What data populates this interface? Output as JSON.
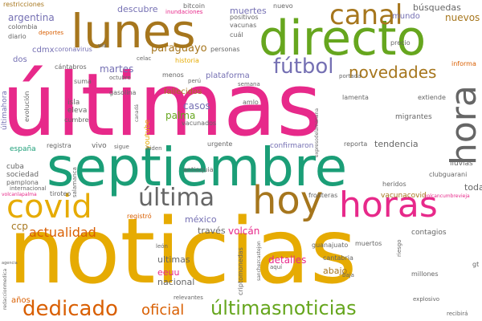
{
  "palette": {
    "pink": "#e7298a",
    "teal": "#1b9e77",
    "gold": "#e6ab02",
    "olive": "#a6761d",
    "green": "#66a61e",
    "purple": "#7570b3",
    "orange": "#d95f02",
    "grey": "#666666"
  },
  "words": {
    "noticias": "noticias",
    "ultimas_big": "últimas",
    "septiembre": "septiembre",
    "directo": "directo",
    "lunes": "lunes",
    "hoy": "hoy",
    "horas": "horas",
    "covid": "covid",
    "hora": "hora",
    "canal": "canal",
    "futbol": "fútbol",
    "ultima": "última",
    "novedades": "novedades",
    "ultimasnoticias": "últimasnoticias",
    "dedicado": "dedicado",
    "oficial": "oficial",
    "actualidad": "actualidad",
    "paraguayo": "paraguayo",
    "martes": "martes",
    "argentina": "argentina",
    "cdmx": "cdmx",
    "descubre": "descubre",
    "muertes": "muertes",
    "busquedas": "búsquedas",
    "nuevos": "nuevos",
    "mundo": "mundo",
    "tendencia": "tendencia",
    "detalles": "detalles",
    "abajo": "abajo",
    "toda": "toda",
    "volcan": "volcán",
    "ultimas_small": "ultimas",
    "eeuu": "eeuu",
    "nacional": "nacional",
    "casos": "casos",
    "palma": "palma",
    "mexico": "méxico",
    "traves": "través",
    "ccp": "ccp",
    "dos": "dos",
    "anos": "años",
    "vivo": "vivo",
    "youtube": "youtube",
    "fallecidos": "fallecidos",
    "plataforma": "plataforma",
    "cuba": "cuba",
    "sociedad": "sociedad",
    "pamplona": "pamplona",
    "espana": "españa",
    "informa": "informa",
    "confirmaron": "confirmaron",
    "contagios": "contagios",
    "vacunacovid": "vacunacovid",
    "lluvias": "lluvias",
    "migrantes": "migrantes",
    "guanajuato": "guanajuato",
    "muertos": "muertos",
    "millones": "millones",
    "amlo": "amlo",
    "cantabria": "cantabria",
    "historia": "historia",
    "coronavirus": "coronavirus",
    "vacunados": "vacunados",
    "cantabros": "cántabros",
    "isla": "isla",
    "eleva": "eleva",
    "suma": "suma",
    "evolucion": "evolución",
    "ultimahora": "últimahora",
    "menos": "menos",
    "urgente": "urgente",
    "lamenta": "lamenta",
    "extiende": "extiende",
    "reporta": "reporta",
    "heridos": "heridos",
    "clubguarani": "clubguarani",
    "registra": "registra",
    "precio": "precio",
    "restricciones": "restricciones",
    "colombia": "colombia",
    "diario": "diario",
    "bitcoin": "bitcoin",
    "inundaciones": "inundaciones",
    "positivos": "positivos",
    "vacunas": "vacunas",
    "nuevo": "nuevo",
    "cual": "cuál",
    "personas": "personas",
    "deportes": "deportes",
    "internacional": "internacional",
    "gasolina": "gasolina",
    "cumbre": "cumbre",
    "tiroteo": "tiroteo",
    "fronteras": "fronteras",
    "frontera": "frontera",
    "registro": "registró",
    "biden": "biden",
    "sigue": "sigue",
    "antioquia": "antioquia",
    "leon": "león",
    "baja": "baja",
    "explosivo": "explosivo",
    "recibira": "recibirá",
    "aqui": "aquí",
    "relevantes": "relevantes",
    "criptomonedas": "criptomonedas",
    "riesgo": "riesgo",
    "sanchezcastejon": "sanchezcastejon",
    "expresodelamanana": "expresodelamanana",
    "redaccionmedica": "redaccionmedica",
    "volcanlapalma": "volcanlapalma",
    "volcancumbrevieja": "volcancumbrevieja",
    "octubre": "octubre",
    "celac": "celac",
    "peru": "perú",
    "semana": "semana",
    "portada": "portada",
    "via": "vía",
    "salamanca": "salamanca",
    "canada": "canadá",
    "agencia": "agencia",
    "gt": "gt"
  }
}
